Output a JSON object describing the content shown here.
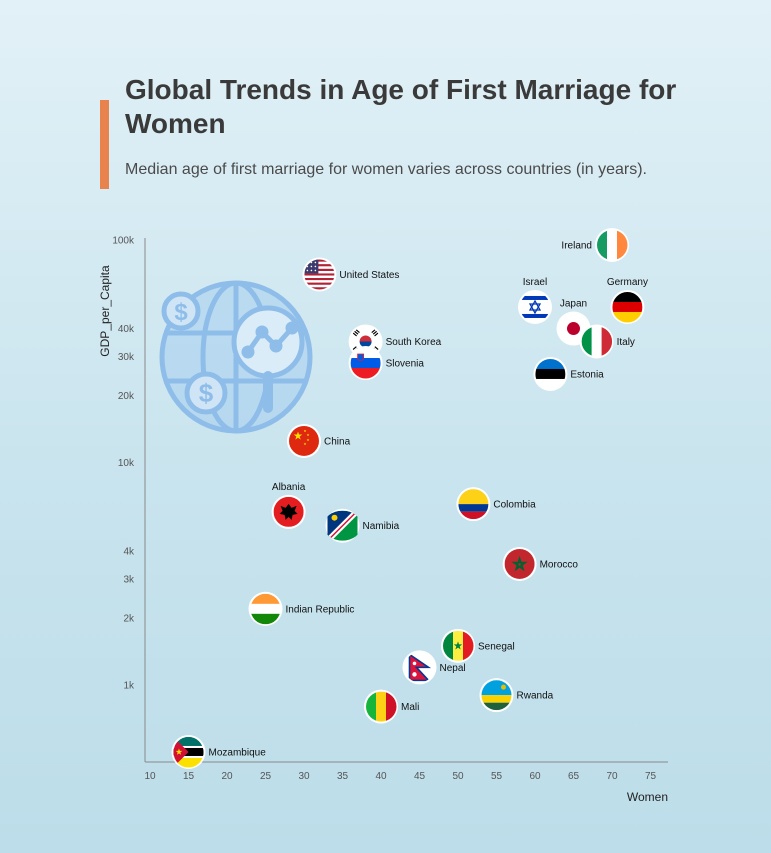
{
  "header": {
    "title": "Global Trends in Age of First Marriage for Women",
    "subtitle": "Median age of first marriage for women varies across countries (in years)."
  },
  "chart_data": {
    "type": "scatter",
    "xlabel": "Women",
    "ylabel": "GDP_per_Capita",
    "y_scale": "log",
    "xlim": [
      10,
      77
    ],
    "ylim": [
      540,
      105000
    ],
    "x_ticks": [
      10,
      15,
      20,
      25,
      30,
      35,
      40,
      45,
      50,
      55,
      60,
      65,
      70,
      75
    ],
    "y_ticks": [
      {
        "value": 1000,
        "label": "1k"
      },
      {
        "value": 2000,
        "label": "2k"
      },
      {
        "value": 3000,
        "label": "3k"
      },
      {
        "value": 4000,
        "label": "4k"
      },
      {
        "value": 10000,
        "label": "10k"
      },
      {
        "value": 20000,
        "label": "20k"
      },
      {
        "value": 30000,
        "label": "30k"
      },
      {
        "value": 40000,
        "label": "40k"
      },
      {
        "value": 100000,
        "label": "100k"
      }
    ],
    "points": [
      {
        "label": "Ireland",
        "x": 70,
        "y": 95000,
        "flag": "ireland",
        "label_pos": "left"
      },
      {
        "label": "United States",
        "x": 32,
        "y": 70000,
        "flag": "usa",
        "label_pos": "right"
      },
      {
        "label": "Israel",
        "x": 60,
        "y": 50000,
        "flag": "israel",
        "label_pos": "top"
      },
      {
        "label": "Germany",
        "x": 72,
        "y": 50000,
        "flag": "germany",
        "label_pos": "top"
      },
      {
        "label": "Japan",
        "x": 65,
        "y": 40000,
        "flag": "japan",
        "label_pos": "top"
      },
      {
        "label": "Italy",
        "x": 68,
        "y": 35000,
        "flag": "italy",
        "label_pos": "right"
      },
      {
        "label": "South Korea",
        "x": 38,
        "y": 35000,
        "flag": "south-korea",
        "label_pos": "right"
      },
      {
        "label": "Slovenia",
        "x": 38,
        "y": 28000,
        "flag": "slovenia",
        "label_pos": "right"
      },
      {
        "label": "Estonia",
        "x": 62,
        "y": 25000,
        "flag": "estonia",
        "label_pos": "right"
      },
      {
        "label": "China",
        "x": 30,
        "y": 12500,
        "flag": "china",
        "label_pos": "right"
      },
      {
        "label": "Colombia",
        "x": 52,
        "y": 6500,
        "flag": "colombia",
        "label_pos": "right"
      },
      {
        "label": "Albania",
        "x": 28,
        "y": 6000,
        "flag": "albania",
        "label_pos": "top"
      },
      {
        "label": "Namibia",
        "x": 35,
        "y": 5200,
        "flag": "namibia",
        "label_pos": "right"
      },
      {
        "label": "Morocco",
        "x": 58,
        "y": 3500,
        "flag": "morocco",
        "label_pos": "right"
      },
      {
        "label": "Indian Republic",
        "x": 25,
        "y": 2200,
        "flag": "india",
        "label_pos": "right"
      },
      {
        "label": "Senegal",
        "x": 50,
        "y": 1500,
        "flag": "senegal",
        "label_pos": "right"
      },
      {
        "label": "Nepal",
        "x": 45,
        "y": 1200,
        "flag": "nepal",
        "label_pos": "right"
      },
      {
        "label": "Rwanda",
        "x": 55,
        "y": 900,
        "flag": "rwanda",
        "label_pos": "right"
      },
      {
        "label": "Mali",
        "x": 40,
        "y": 800,
        "flag": "mali",
        "label_pos": "right"
      },
      {
        "label": "Mozambique",
        "x": 15,
        "y": 500,
        "flag": "mozambique",
        "label_pos": "right"
      }
    ],
    "decoration": {
      "icon": "global-finance-icon",
      "color": "#8fbde9"
    },
    "colors": {
      "accent": "#e8834e",
      "axis": "#8a8a8a"
    }
  }
}
